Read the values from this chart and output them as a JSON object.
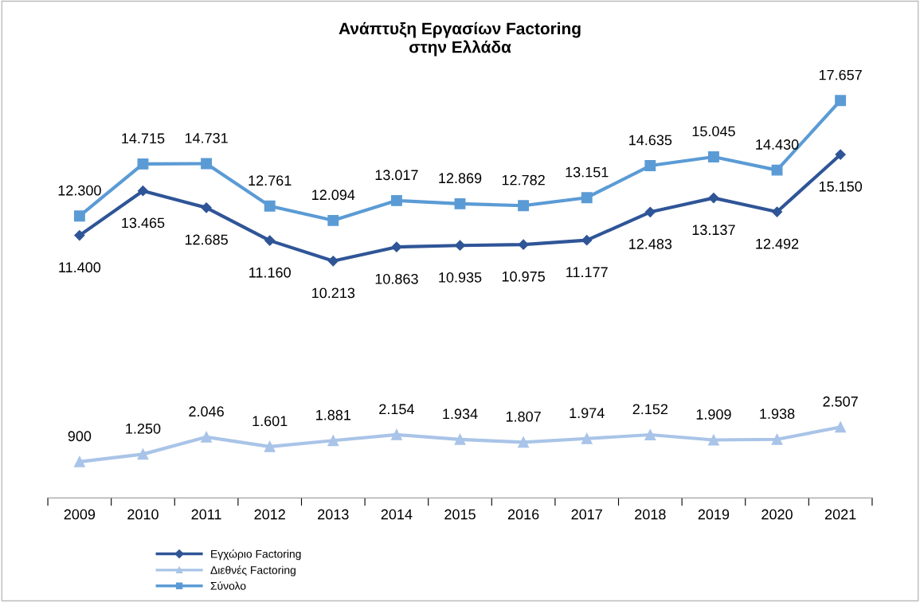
{
  "chart_data": {
    "type": "line",
    "title": "Ανάπτυξη Εργασίων Factoring\nστην Ελλάδα",
    "categories": [
      "2009",
      "2010",
      "2011",
      "2012",
      "2013",
      "2014",
      "2015",
      "2016",
      "2017",
      "2018",
      "2019",
      "2020",
      "2021"
    ],
    "series": [
      {
        "name": "Εγχώριο Factoring",
        "color": "#2f5597",
        "marker": "diamond",
        "values": [
          11400,
          13465,
          12685,
          11160,
          10213,
          10863,
          10935,
          10975,
          11177,
          12483,
          13137,
          12492,
          15150
        ],
        "value_labels": [
          "11.400",
          "13.465",
          "12.685",
          "11.160",
          "10.213",
          "10.863",
          "10.935",
          "10.975",
          "11.177",
          "12.483",
          "13.137",
          "12.492",
          "15.150"
        ]
      },
      {
        "name": "Διεθνές Factoring",
        "color": "#a9c4e8",
        "marker": "triangle",
        "values": [
          900,
          1250,
          2046,
          1601,
          1881,
          2154,
          1934,
          1807,
          1974,
          2152,
          1909,
          1938,
          2507
        ],
        "value_labels": [
          "900",
          "1.250",
          "2.046",
          "1.601",
          "1.881",
          "2.154",
          "1.934",
          "1.807",
          "1.974",
          "2.152",
          "1.909",
          "1.938",
          "2.507"
        ]
      },
      {
        "name": "Σύνολο",
        "color": "#5b9bd5",
        "marker": "square",
        "values": [
          12300,
          14715,
          14731,
          12761,
          12094,
          13017,
          12869,
          12782,
          13151,
          14635,
          15045,
          14430,
          17657
        ],
        "value_labels": [
          "12.300",
          "14.715",
          "14.731",
          "12.761",
          "12.094",
          "13.017",
          "12.869",
          "12.782",
          "13.151",
          "14.635",
          "15.045",
          "14.430",
          "17.657"
        ]
      }
    ],
    "tick_labels": "x",
    "grid": false,
    "legend": "bottom left",
    "line_style": "solid"
  }
}
